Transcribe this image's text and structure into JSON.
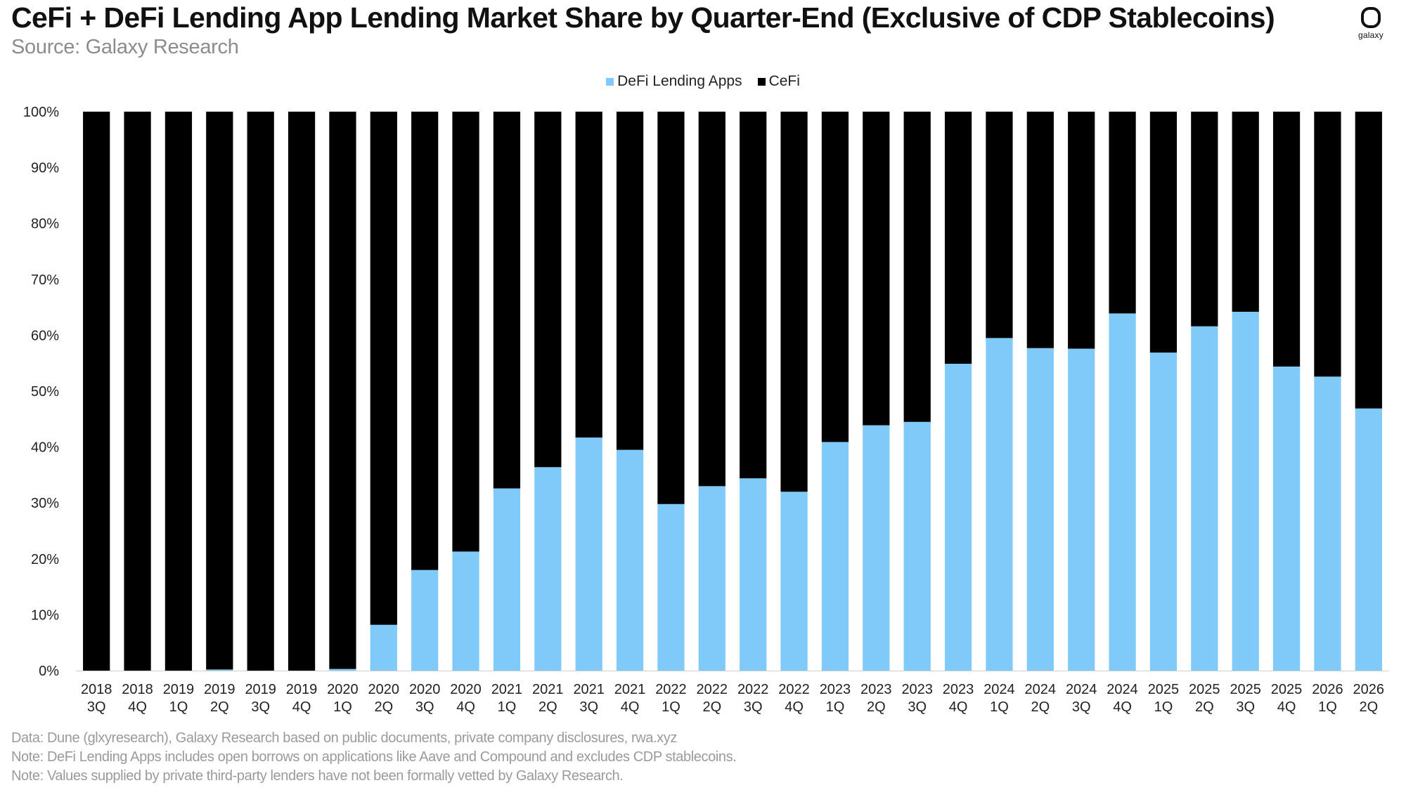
{
  "header": {
    "title": "CeFi + DeFi Lending App Lending Market Share by Quarter-End (Exclusive of CDP Stablecoins)",
    "subtitle": "Source: Galaxy Research"
  },
  "brand": {
    "logo_icon": "galaxy-logo-icon",
    "logo_text": "galaxy"
  },
  "footnotes": [
    "Data: Dune (glxyresearch), Galaxy Research based on public documents, private company disclosures, rwa.xyz",
    "Note: DeFi Lending Apps includes open borrows on applications like Aave and Compound and excludes CDP stablecoins.",
    "Note: Values supplied by private third-party lenders have not been formally vetted  by Galaxy Research."
  ],
  "chart_data": {
    "type": "bar",
    "stacked": true,
    "normalized": true,
    "title": "CeFi + DeFi Lending App Lending Market Share by Quarter-End (Exclusive of CDP Stablecoins)",
    "subtitle": "Source: Galaxy Research",
    "xlabel": "",
    "ylabel": "",
    "ylim": [
      0,
      100
    ],
    "yticks": [
      "0%",
      "10%",
      "20%",
      "30%",
      "40%",
      "50%",
      "60%",
      "70%",
      "80%",
      "90%",
      "100%"
    ],
    "grid": false,
    "legend_position": "top-center",
    "categories": [
      [
        "2018",
        "3Q"
      ],
      [
        "2018",
        "4Q"
      ],
      [
        "2019",
        "1Q"
      ],
      [
        "2019",
        "2Q"
      ],
      [
        "2019",
        "3Q"
      ],
      [
        "2019",
        "4Q"
      ],
      [
        "2020",
        "1Q"
      ],
      [
        "2020",
        "2Q"
      ],
      [
        "2020",
        "3Q"
      ],
      [
        "2020",
        "4Q"
      ],
      [
        "2021",
        "1Q"
      ],
      [
        "2021",
        "2Q"
      ],
      [
        "2021",
        "3Q"
      ],
      [
        "2021",
        "4Q"
      ],
      [
        "2022",
        "1Q"
      ],
      [
        "2022",
        "2Q"
      ],
      [
        "2022",
        "3Q"
      ],
      [
        "2022",
        "4Q"
      ],
      [
        "2023",
        "1Q"
      ],
      [
        "2023",
        "2Q"
      ],
      [
        "2023",
        "3Q"
      ],
      [
        "2023",
        "4Q"
      ],
      [
        "2024",
        "1Q"
      ],
      [
        "2024",
        "2Q"
      ],
      [
        "2024",
        "3Q"
      ],
      [
        "2024",
        "4Q"
      ],
      [
        "2025",
        "1Q"
      ],
      [
        "2025",
        "2Q"
      ],
      [
        "2025",
        "3Q"
      ],
      [
        "2025",
        "4Q"
      ],
      [
        "2026",
        "1Q"
      ],
      [
        "2026",
        "2Q"
      ]
    ],
    "series": [
      {
        "name": "DeFi Lending Apps",
        "color": "#80CAF9",
        "values": [
          0,
          0,
          0,
          0.2,
          0,
          0,
          0.3,
          8.2,
          18,
          21.3,
          32.6,
          36.4,
          41.7,
          39.5,
          29.8,
          33,
          34.4,
          32,
          40.9,
          43.9,
          44.5,
          54.9,
          59.5,
          57.7,
          57.6,
          63.9,
          56.9,
          61.6,
          64.2,
          54.4,
          52.6,
          46.9
        ]
      },
      {
        "name": "CeFi",
        "color": "#000000",
        "values": [
          100,
          100,
          100,
          99.8,
          100,
          100,
          99.7,
          91.8,
          82,
          78.7,
          67.4,
          63.6,
          58.3,
          60.5,
          70.2,
          67,
          65.6,
          68,
          59.1,
          56.1,
          55.5,
          45.1,
          40.5,
          42.3,
          42.4,
          36.1,
          43.1,
          38.4,
          35.8,
          45.6,
          47.4,
          53.1
        ]
      }
    ]
  }
}
